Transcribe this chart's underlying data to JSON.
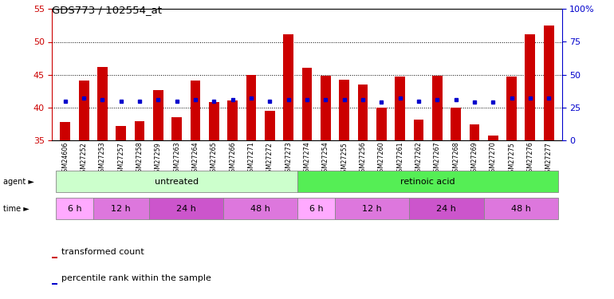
{
  "title": "GDS773 / 102554_at",
  "samples": [
    "GSM24606",
    "GSM27252",
    "GSM27253",
    "GSM27257",
    "GSM27258",
    "GSM27259",
    "GSM27263",
    "GSM27264",
    "GSM27265",
    "GSM27266",
    "GSM27271",
    "GSM27272",
    "GSM27273",
    "GSM27274",
    "GSM27254",
    "GSM27255",
    "GSM27256",
    "GSM27260",
    "GSM27261",
    "GSM27262",
    "GSM27267",
    "GSM27268",
    "GSM27269",
    "GSM27270",
    "GSM27275",
    "GSM27276",
    "GSM27277"
  ],
  "transformed_count": [
    37.8,
    44.1,
    46.2,
    37.2,
    38.0,
    42.7,
    38.6,
    44.1,
    40.8,
    41.1,
    45.0,
    39.5,
    51.2,
    46.1,
    44.8,
    44.2,
    43.5,
    40.0,
    44.7,
    38.2,
    44.8,
    40.0,
    37.5,
    35.8,
    44.7,
    51.2,
    52.5
  ],
  "percentile_rank": [
    30,
    32,
    31,
    30,
    30,
    31,
    30,
    31,
    30,
    31,
    32,
    30,
    31,
    31,
    31,
    31,
    31,
    29,
    32,
    30,
    31,
    31,
    29,
    29,
    32,
    32,
    32
  ],
  "ylim_left": [
    35,
    55
  ],
  "ylim_right": [
    0,
    100
  ],
  "yticks_left": [
    35,
    40,
    45,
    50,
    55
  ],
  "yticks_right": [
    0,
    25,
    50,
    75,
    100
  ],
  "bar_color": "#cc0000",
  "marker_color": "#0000cc",
  "bar_bottom": 35,
  "agent_groups": [
    {
      "label": "untreated",
      "start": 0,
      "end": 13,
      "color": "#ccffcc"
    },
    {
      "label": "retinoic acid",
      "start": 13,
      "end": 27,
      "color": "#55ee55"
    }
  ],
  "time_groups": [
    {
      "label": "6 h",
      "start": 0,
      "end": 2,
      "color": "#ffaaff"
    },
    {
      "label": "12 h",
      "start": 2,
      "end": 5,
      "color": "#dd77dd"
    },
    {
      "label": "24 h",
      "start": 5,
      "end": 9,
      "color": "#cc55cc"
    },
    {
      "label": "48 h",
      "start": 9,
      "end": 13,
      "color": "#dd77dd"
    },
    {
      "label": "6 h",
      "start": 13,
      "end": 15,
      "color": "#ffaaff"
    },
    {
      "label": "12 h",
      "start": 15,
      "end": 19,
      "color": "#dd77dd"
    },
    {
      "label": "24 h",
      "start": 19,
      "end": 23,
      "color": "#cc55cc"
    },
    {
      "label": "48 h",
      "start": 23,
      "end": 27,
      "color": "#dd77dd"
    }
  ],
  "legend_items": [
    {
      "label": "transformed count",
      "color": "#cc0000"
    },
    {
      "label": "percentile rank within the sample",
      "color": "#0000cc"
    }
  ]
}
